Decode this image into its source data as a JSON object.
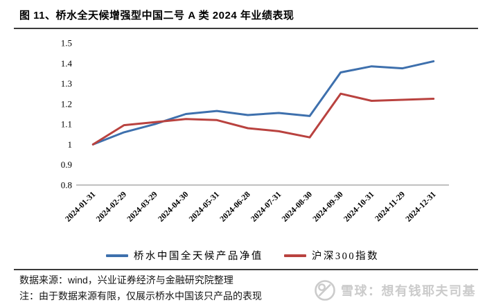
{
  "title": "图 11、桥水全天候增强型中国二号 A 类 2024 年业绩表现",
  "chart_data": {
    "type": "line",
    "categories": [
      "2024-01-31",
      "2024-02-29",
      "2024-03-29",
      "2024-04-30",
      "2024-05-31",
      "2024-06-28",
      "2024-07-31",
      "2024-08-30",
      "2024-09-30",
      "2024-10-31",
      "2024-11-29",
      "2024-12-31"
    ],
    "series": [
      {
        "name": "桥水中国全天候产品净值",
        "color": "#3e70ad",
        "values": [
          1.0,
          1.06,
          1.1,
          1.15,
          1.165,
          1.145,
          1.155,
          1.14,
          1.355,
          1.385,
          1.375,
          1.41
        ]
      },
      {
        "name": "沪深300指数",
        "color": "#b9423f",
        "values": [
          1.0,
          1.095,
          1.11,
          1.125,
          1.12,
          1.08,
          1.065,
          1.035,
          1.25,
          1.215,
          1.22,
          1.225
        ]
      }
    ],
    "title": "桥水全天候增强型中国二号A类2024年业绩表现",
    "xlabel": "",
    "ylabel": "",
    "ylim": [
      0.8,
      1.5
    ],
    "yticks": [
      0.8,
      0.9,
      1.0,
      1.1,
      1.2,
      1.3,
      1.4,
      1.5
    ],
    "ytick_labels": [
      "0.8",
      "0.9",
      "1",
      "1.1",
      "1.2",
      "1.3",
      "1.4",
      "1.5"
    ],
    "grid": false,
    "legend_position": "bottom",
    "x_label_rotation_deg": -45
  },
  "footer": {
    "source": "数据来源：wind，兴业证券经济与金融研究院整理",
    "note": "注：由于数据来源有限，仅展示桥水中国该只产品的表现"
  },
  "watermark": {
    "text": "雪球：想有钱耶夫司基",
    "logo": "xueqiu-snowball-icon",
    "color": "#cbcbcb"
  }
}
